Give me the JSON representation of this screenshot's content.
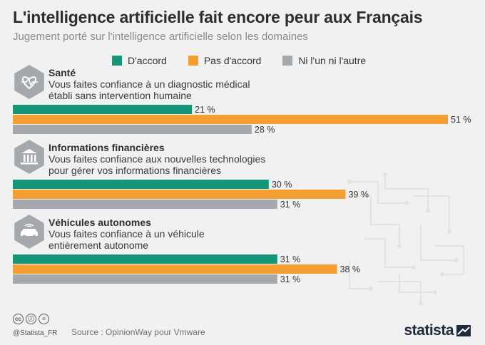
{
  "header": {
    "title": "L'intelligence artificielle fait encore peur aux Français",
    "subtitle": "Jugement porté sur l'intelligence artificielle selon les domaines"
  },
  "legend": [
    {
      "label": "D'accord",
      "color": "#169679"
    },
    {
      "label": "Pas d'accord",
      "color": "#f59e32"
    },
    {
      "label": "Ni l'un ni l'autre",
      "color": "#a5a9ae"
    }
  ],
  "chart_data": {
    "type": "bar",
    "orientation": "horizontal",
    "unit": "%",
    "xlim": [
      0,
      51
    ],
    "groups": [
      {
        "name": "Santé",
        "question": [
          "Vous faites confiance à un diagnostic médical",
          "établi sans intervention humaine"
        ],
        "icon": "heart-pulse-icon",
        "values": [
          21,
          51,
          28
        ],
        "labels": [
          "21 %",
          "51 %",
          "28 %"
        ]
      },
      {
        "name": "Informations financières",
        "question": [
          "Vous faites confiance aux nouvelles technologies",
          "pour gérer vos informations financières"
        ],
        "icon": "bank-icon",
        "values": [
          30,
          39,
          31
        ],
        "labels": [
          "30 %",
          "39 %",
          "31 %"
        ]
      },
      {
        "name": "Véhicules autonomes",
        "question": [
          "Vous faites confiance à un véhicule",
          "entièrement autonome"
        ],
        "icon": "autonomous-car-icon",
        "values": [
          31,
          38,
          31
        ],
        "labels": [
          "31 %",
          "38 %",
          "31 %"
        ]
      }
    ],
    "series": [
      "D'accord",
      "Pas d'accord",
      "Ni l'un ni l'autre"
    ],
    "colors": [
      "#169679",
      "#f59e32",
      "#a5a9ae"
    ]
  },
  "footer": {
    "handle": "@Statista_FR",
    "source": "Source : OpinionWay pour Vmware",
    "brand": "statista",
    "license_icons": [
      "cc",
      "ⓘ",
      "="
    ]
  }
}
